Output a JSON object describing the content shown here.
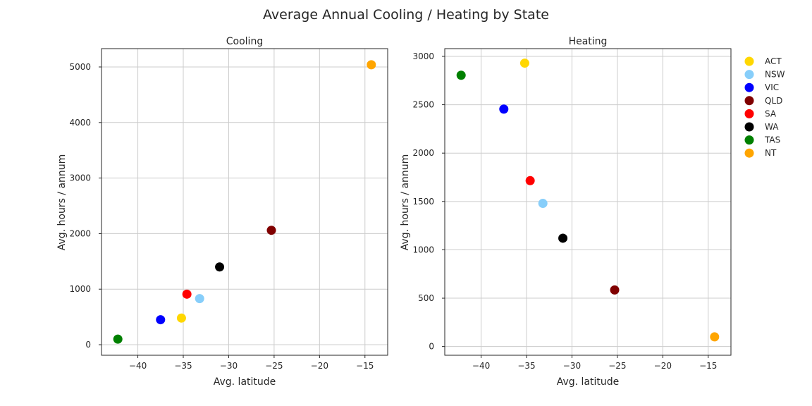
{
  "title": "Average Annual Cooling / Heating by State",
  "chart_data": [
    {
      "type": "scatter",
      "title": "Cooling",
      "xlabel": "Avg. latitude",
      "ylabel": "Avg. hours / annum",
      "xlim": [
        -44,
        -12.5
      ],
      "ylim": [
        -190,
        5330
      ],
      "xticks": [
        -40,
        -35,
        -30,
        -25,
        -20,
        -15
      ],
      "yticks": [
        0,
        1000,
        2000,
        3000,
        4000,
        5000
      ],
      "grid": true,
      "points": [
        {
          "state": "ACT",
          "x": -35.2,
          "y": 480
        },
        {
          "state": "NSW",
          "x": -33.2,
          "y": 830
        },
        {
          "state": "VIC",
          "x": -37.5,
          "y": 450
        },
        {
          "state": "QLD",
          "x": -25.3,
          "y": 2060
        },
        {
          "state": "SA",
          "x": -34.6,
          "y": 910
        },
        {
          "state": "WA",
          "x": -31.0,
          "y": 1400
        },
        {
          "state": "TAS",
          "x": -42.2,
          "y": 100
        },
        {
          "state": "NT",
          "x": -14.3,
          "y": 5040
        }
      ]
    },
    {
      "type": "scatter",
      "title": "Heating",
      "xlabel": "Avg. latitude",
      "ylabel": "Avg. hours / annum",
      "xlim": [
        -44,
        -12.5
      ],
      "ylim": [
        -90,
        3080
      ],
      "xticks": [
        -40,
        -35,
        -30,
        -25,
        -20,
        -15
      ],
      "yticks": [
        0,
        500,
        1000,
        1500,
        2000,
        2500,
        3000
      ],
      "grid": true,
      "points": [
        {
          "state": "ACT",
          "x": -35.2,
          "y": 2930
        },
        {
          "state": "NSW",
          "x": -33.2,
          "y": 1480
        },
        {
          "state": "VIC",
          "x": -37.5,
          "y": 2455
        },
        {
          "state": "QLD",
          "x": -25.3,
          "y": 585
        },
        {
          "state": "SA",
          "x": -34.6,
          "y": 1715
        },
        {
          "state": "WA",
          "x": -31.0,
          "y": 1120
        },
        {
          "state": "TAS",
          "x": -42.2,
          "y": 2805
        },
        {
          "state": "NT",
          "x": -14.3,
          "y": 100
        }
      ]
    }
  ],
  "legend": {
    "placement": "outside-right",
    "entries": [
      {
        "label": "ACT",
        "color": "#ffd700"
      },
      {
        "label": "NSW",
        "color": "#87cefa"
      },
      {
        "label": "VIC",
        "color": "#0000ff"
      },
      {
        "label": "QLD",
        "color": "#800000"
      },
      {
        "label": "SA",
        "color": "#ff0000"
      },
      {
        "label": "WA",
        "color": "#000000"
      },
      {
        "label": "TAS",
        "color": "#008000"
      },
      {
        "label": "NT",
        "color": "#ffa500"
      }
    ]
  }
}
